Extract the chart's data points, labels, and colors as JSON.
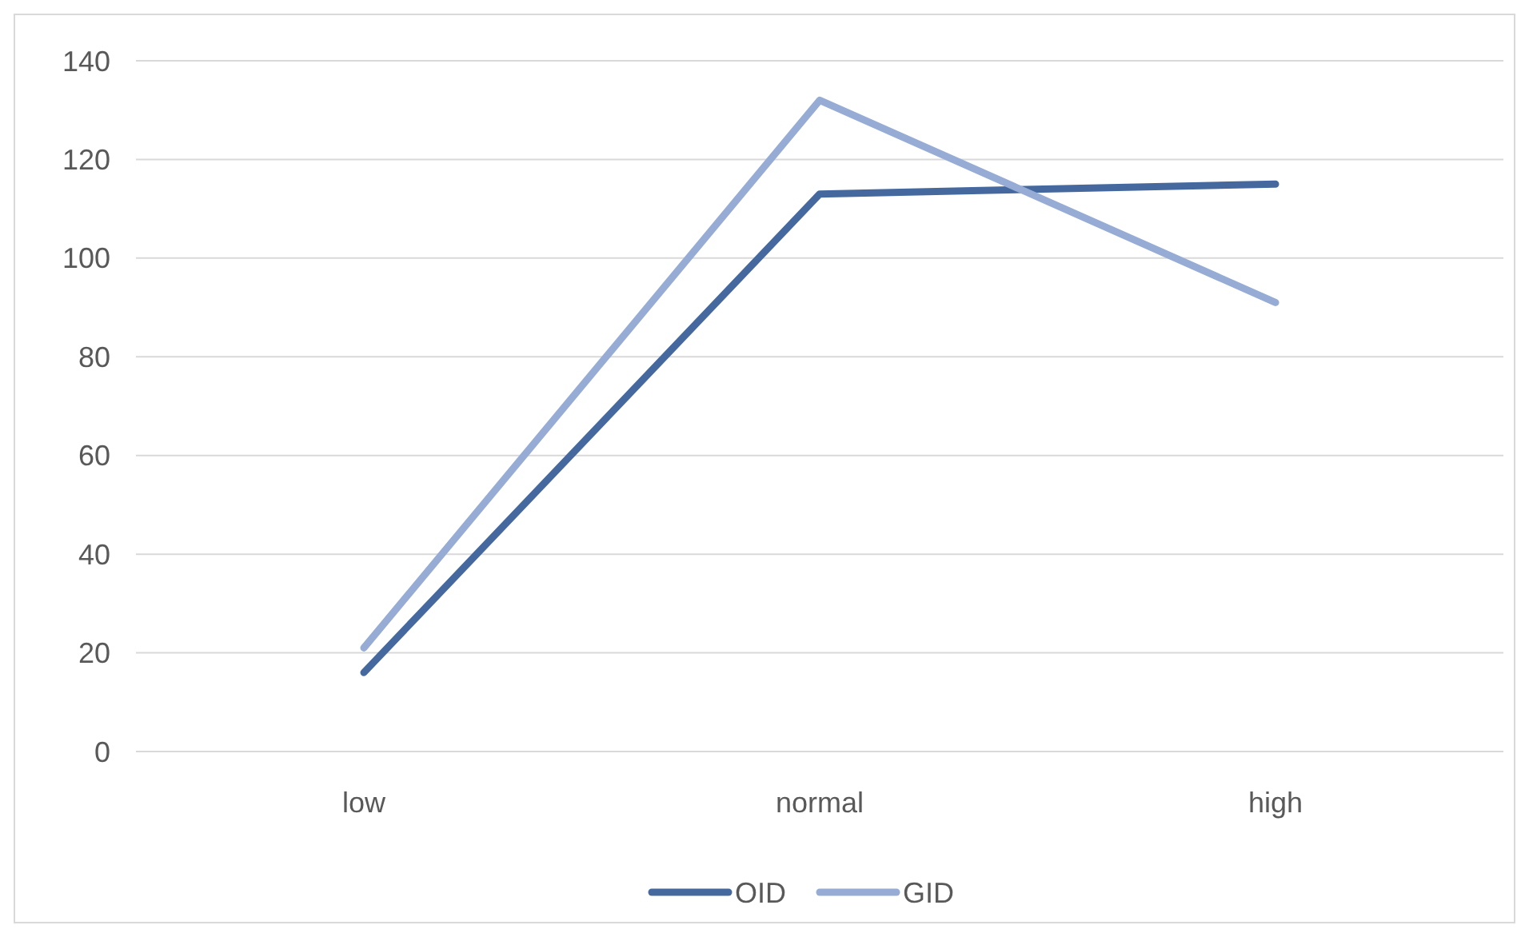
{
  "chart_data": {
    "type": "line",
    "categories": [
      "low",
      "normal",
      "high"
    ],
    "series": [
      {
        "name": "OID",
        "color": "#45699f",
        "values": [
          16,
          113,
          115
        ]
      },
      {
        "name": "GID",
        "color": "#97acd5",
        "values": [
          21,
          132,
          91
        ]
      }
    ],
    "ylim": [
      0,
      140
    ],
    "yticks": [
      0,
      20,
      40,
      60,
      80,
      100,
      120,
      140
    ],
    "grid": "y",
    "legend": "bottom",
    "marker": "none",
    "line_style": "solid"
  }
}
